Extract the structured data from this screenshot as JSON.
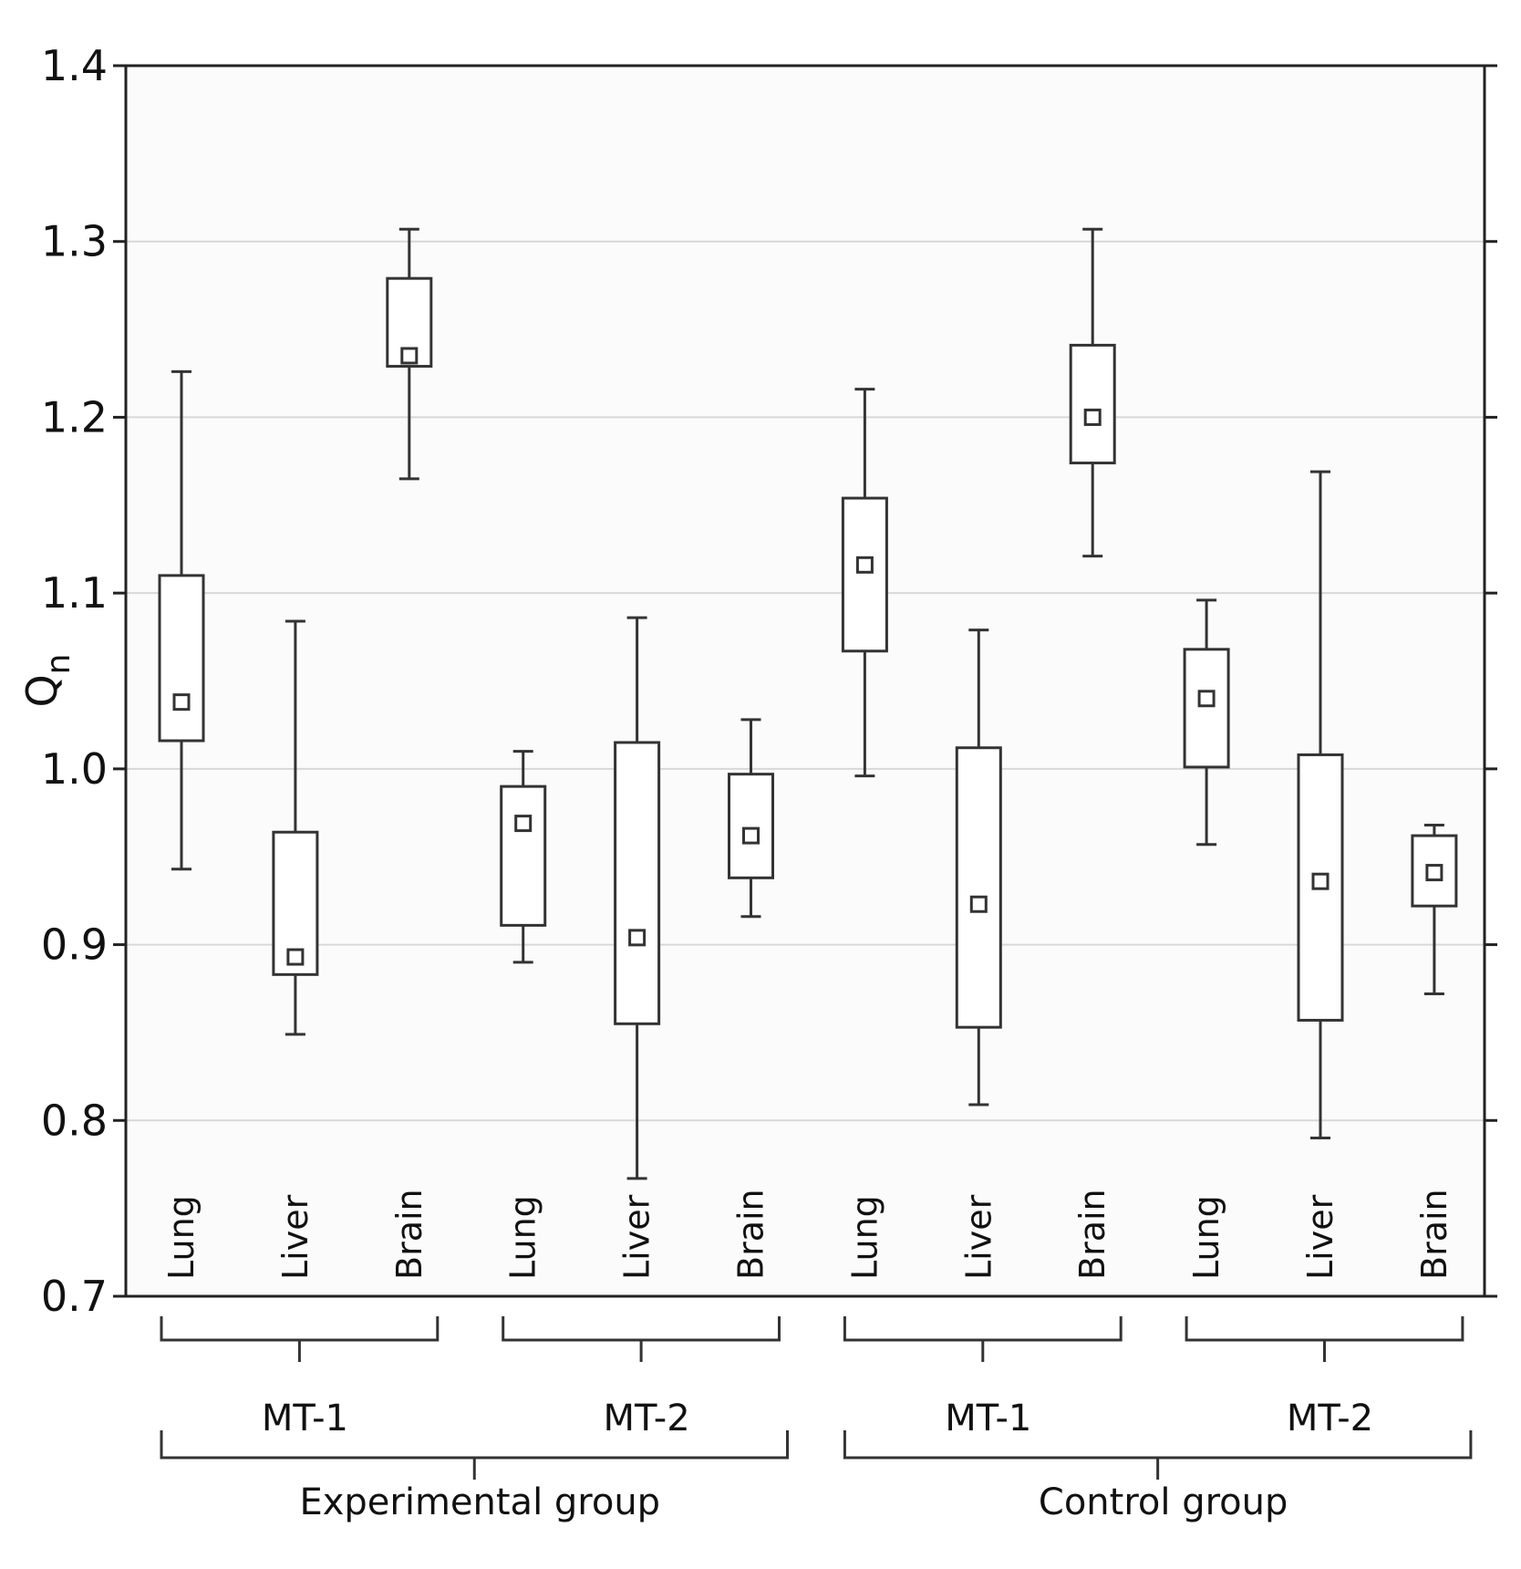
{
  "chart_data": {
    "type": "boxplot",
    "ylabel": "Q",
    "ylabel_sub": "n",
    "ylim": [
      0.7,
      1.4
    ],
    "yticks": [
      "0.7",
      "0.8",
      "0.9",
      "1.0",
      "1.1",
      "1.2",
      "1.3",
      "1.4"
    ],
    "grid": "horizontal",
    "categories": [
      "Lung",
      "Liver",
      "Brain",
      "Lung",
      "Liver",
      "Brain",
      "Lung",
      "Liver",
      "Brain",
      "Lung",
      "Liver",
      "Brain"
    ],
    "groups": [
      {
        "label": "MT-1",
        "start": 0,
        "end": 2
      },
      {
        "label": "MT-2",
        "start": 3,
        "end": 5
      },
      {
        "label": "MT-1",
        "start": 6,
        "end": 8
      },
      {
        "label": "MT-2",
        "start": 9,
        "end": 11
      }
    ],
    "supergroups": [
      {
        "label": "Experimental group",
        "start": 0,
        "end": 5
      },
      {
        "label": "Control group",
        "start": 6,
        "end": 11
      }
    ],
    "boxes": [
      {
        "mean": 1.038,
        "q1": 1.016,
        "q3": 1.11,
        "min": 0.943,
        "max": 1.226
      },
      {
        "mean": 0.893,
        "q1": 0.883,
        "q3": 0.964,
        "min": 0.849,
        "max": 1.084
      },
      {
        "mean": 1.235,
        "q1": 1.229,
        "q3": 1.279,
        "min": 1.165,
        "max": 1.307
      },
      {
        "mean": 0.969,
        "q1": 0.911,
        "q3": 0.99,
        "min": 0.89,
        "max": 1.01
      },
      {
        "mean": 0.904,
        "q1": 0.855,
        "q3": 1.015,
        "min": 0.767,
        "max": 1.086
      },
      {
        "mean": 0.962,
        "q1": 0.938,
        "q3": 0.997,
        "min": 0.916,
        "max": 1.028
      },
      {
        "mean": 1.116,
        "q1": 1.067,
        "q3": 1.154,
        "min": 0.996,
        "max": 1.216
      },
      {
        "mean": 0.923,
        "q1": 0.853,
        "q3": 1.012,
        "min": 0.809,
        "max": 1.079
      },
      {
        "mean": 1.2,
        "q1": 1.174,
        "q3": 1.241,
        "min": 1.121,
        "max": 1.307
      },
      {
        "mean": 1.04,
        "q1": 1.001,
        "q3": 1.068,
        "min": 0.957,
        "max": 1.096
      },
      {
        "mean": 0.936,
        "q1": 0.857,
        "q3": 1.008,
        "min": 0.79,
        "max": 1.169
      },
      {
        "mean": 0.941,
        "q1": 0.922,
        "q3": 0.962,
        "min": 0.872,
        "max": 0.968
      }
    ]
  }
}
